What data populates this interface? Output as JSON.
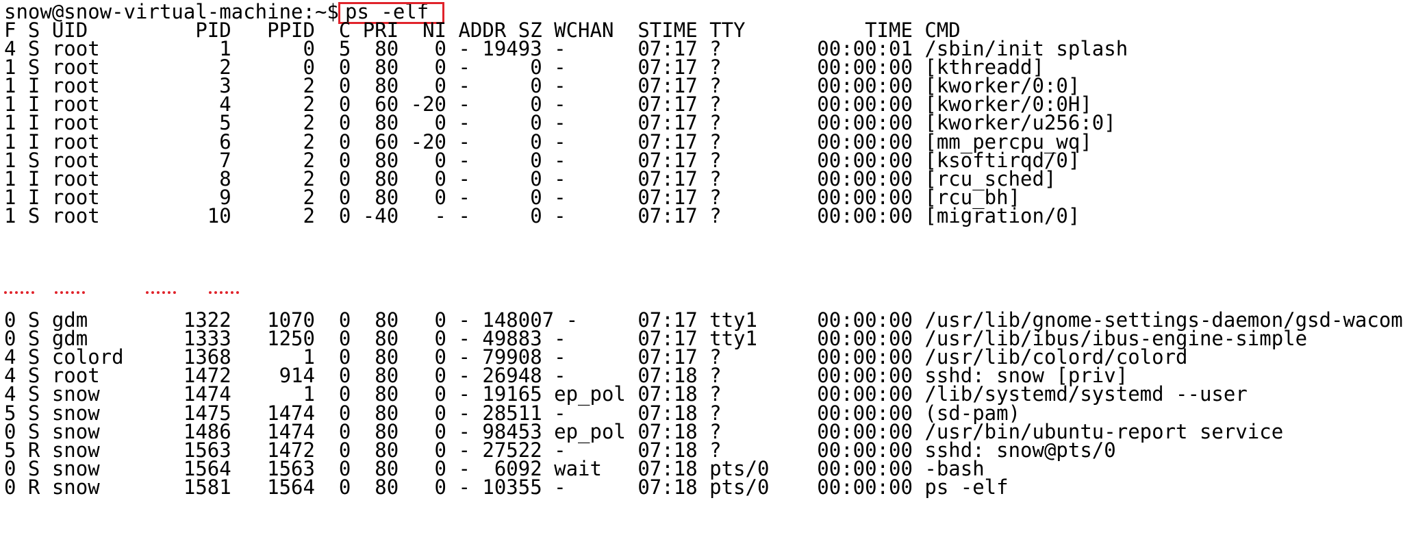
{
  "terminal": {
    "prompt": "snow@snow-virtual-machine:~$ ",
    "command": "ps -elf",
    "header": "F S UID         PID   PPID  C PRI  NI ADDR SZ WCHAN  STIME TTY          TIME CMD",
    "rows_top": [
      "4 S root          1      0  5  80   0 - 19493 -      07:17 ?        00:00:01 /sbin/init splash",
      "1 S root          2      0  0  80   0 -     0 -      07:17 ?        00:00:00 [kthreadd]",
      "1 I root          3      2  0  80   0 -     0 -      07:17 ?        00:00:00 [kworker/0:0]",
      "1 I root          4      2  0  60 -20 -     0 -      07:17 ?        00:00:00 [kworker/0:0H]",
      "1 I root          5      2  0  80   0 -     0 -      07:17 ?        00:00:00 [kworker/u256:0]",
      "1 I root          6      2  0  60 -20 -     0 -      07:17 ?        00:00:00 [mm_percpu_wq]",
      "1 S root          7      2  0  80   0 -     0 -      07:17 ?        00:00:00 [ksoftirqd/0]",
      "1 I root          8      2  0  80   0 -     0 -      07:17 ?        00:00:00 [rcu_sched]",
      "1 I root          9      2  0  80   0 -     0 -      07:17 ?        00:00:00 [rcu_bh]",
      "1 S root         10      2  0 -40   - -     0 -      07:17 ?        00:00:00 [migration/0]"
    ],
    "ellipsis_marker": "......",
    "rows_bottom": [
      "0 S gdm        1322   1070  0  80   0 - 148007 -     07:17 tty1     00:00:00 /usr/lib/gnome-settings-daemon/gsd-wacom",
      "0 S gdm        1333   1250  0  80   0 - 49883 -      07:17 tty1     00:00:00 /usr/lib/ibus/ibus-engine-simple",
      "4 S colord     1368      1  0  80   0 - 79908 -      07:17 ?        00:00:00 /usr/lib/colord/colord",
      "4 S root       1472    914  0  80   0 - 26948 -      07:18 ?        00:00:00 sshd: snow [priv]",
      "4 S snow       1474      1  0  80   0 - 19165 ep_pol 07:18 ?        00:00:00 /lib/systemd/systemd --user",
      "5 S snow       1475   1474  0  80   0 - 28511 -      07:18 ?        00:00:00 (sd-pam)",
      "0 S snow       1486   1474  0  80   0 - 98453 ep_pol 07:18 ?        00:00:00 /usr/bin/ubuntu-report service",
      "5 R snow       1563   1472  0  80   0 - 27522 -      07:18 ?        00:00:00 sshd: snow@pts/0",
      "0 S snow       1564   1563  0  80   0 -  6092 wait   07:18 pts/0    00:00:00 -bash",
      "0 R snow       1581   1564  0  80   0 - 10355 -      07:18 pts/0    00:00:00 ps -elf"
    ],
    "colors": {
      "background": "#ffffff",
      "text": "#000000",
      "highlight": "#e0232b"
    }
  }
}
